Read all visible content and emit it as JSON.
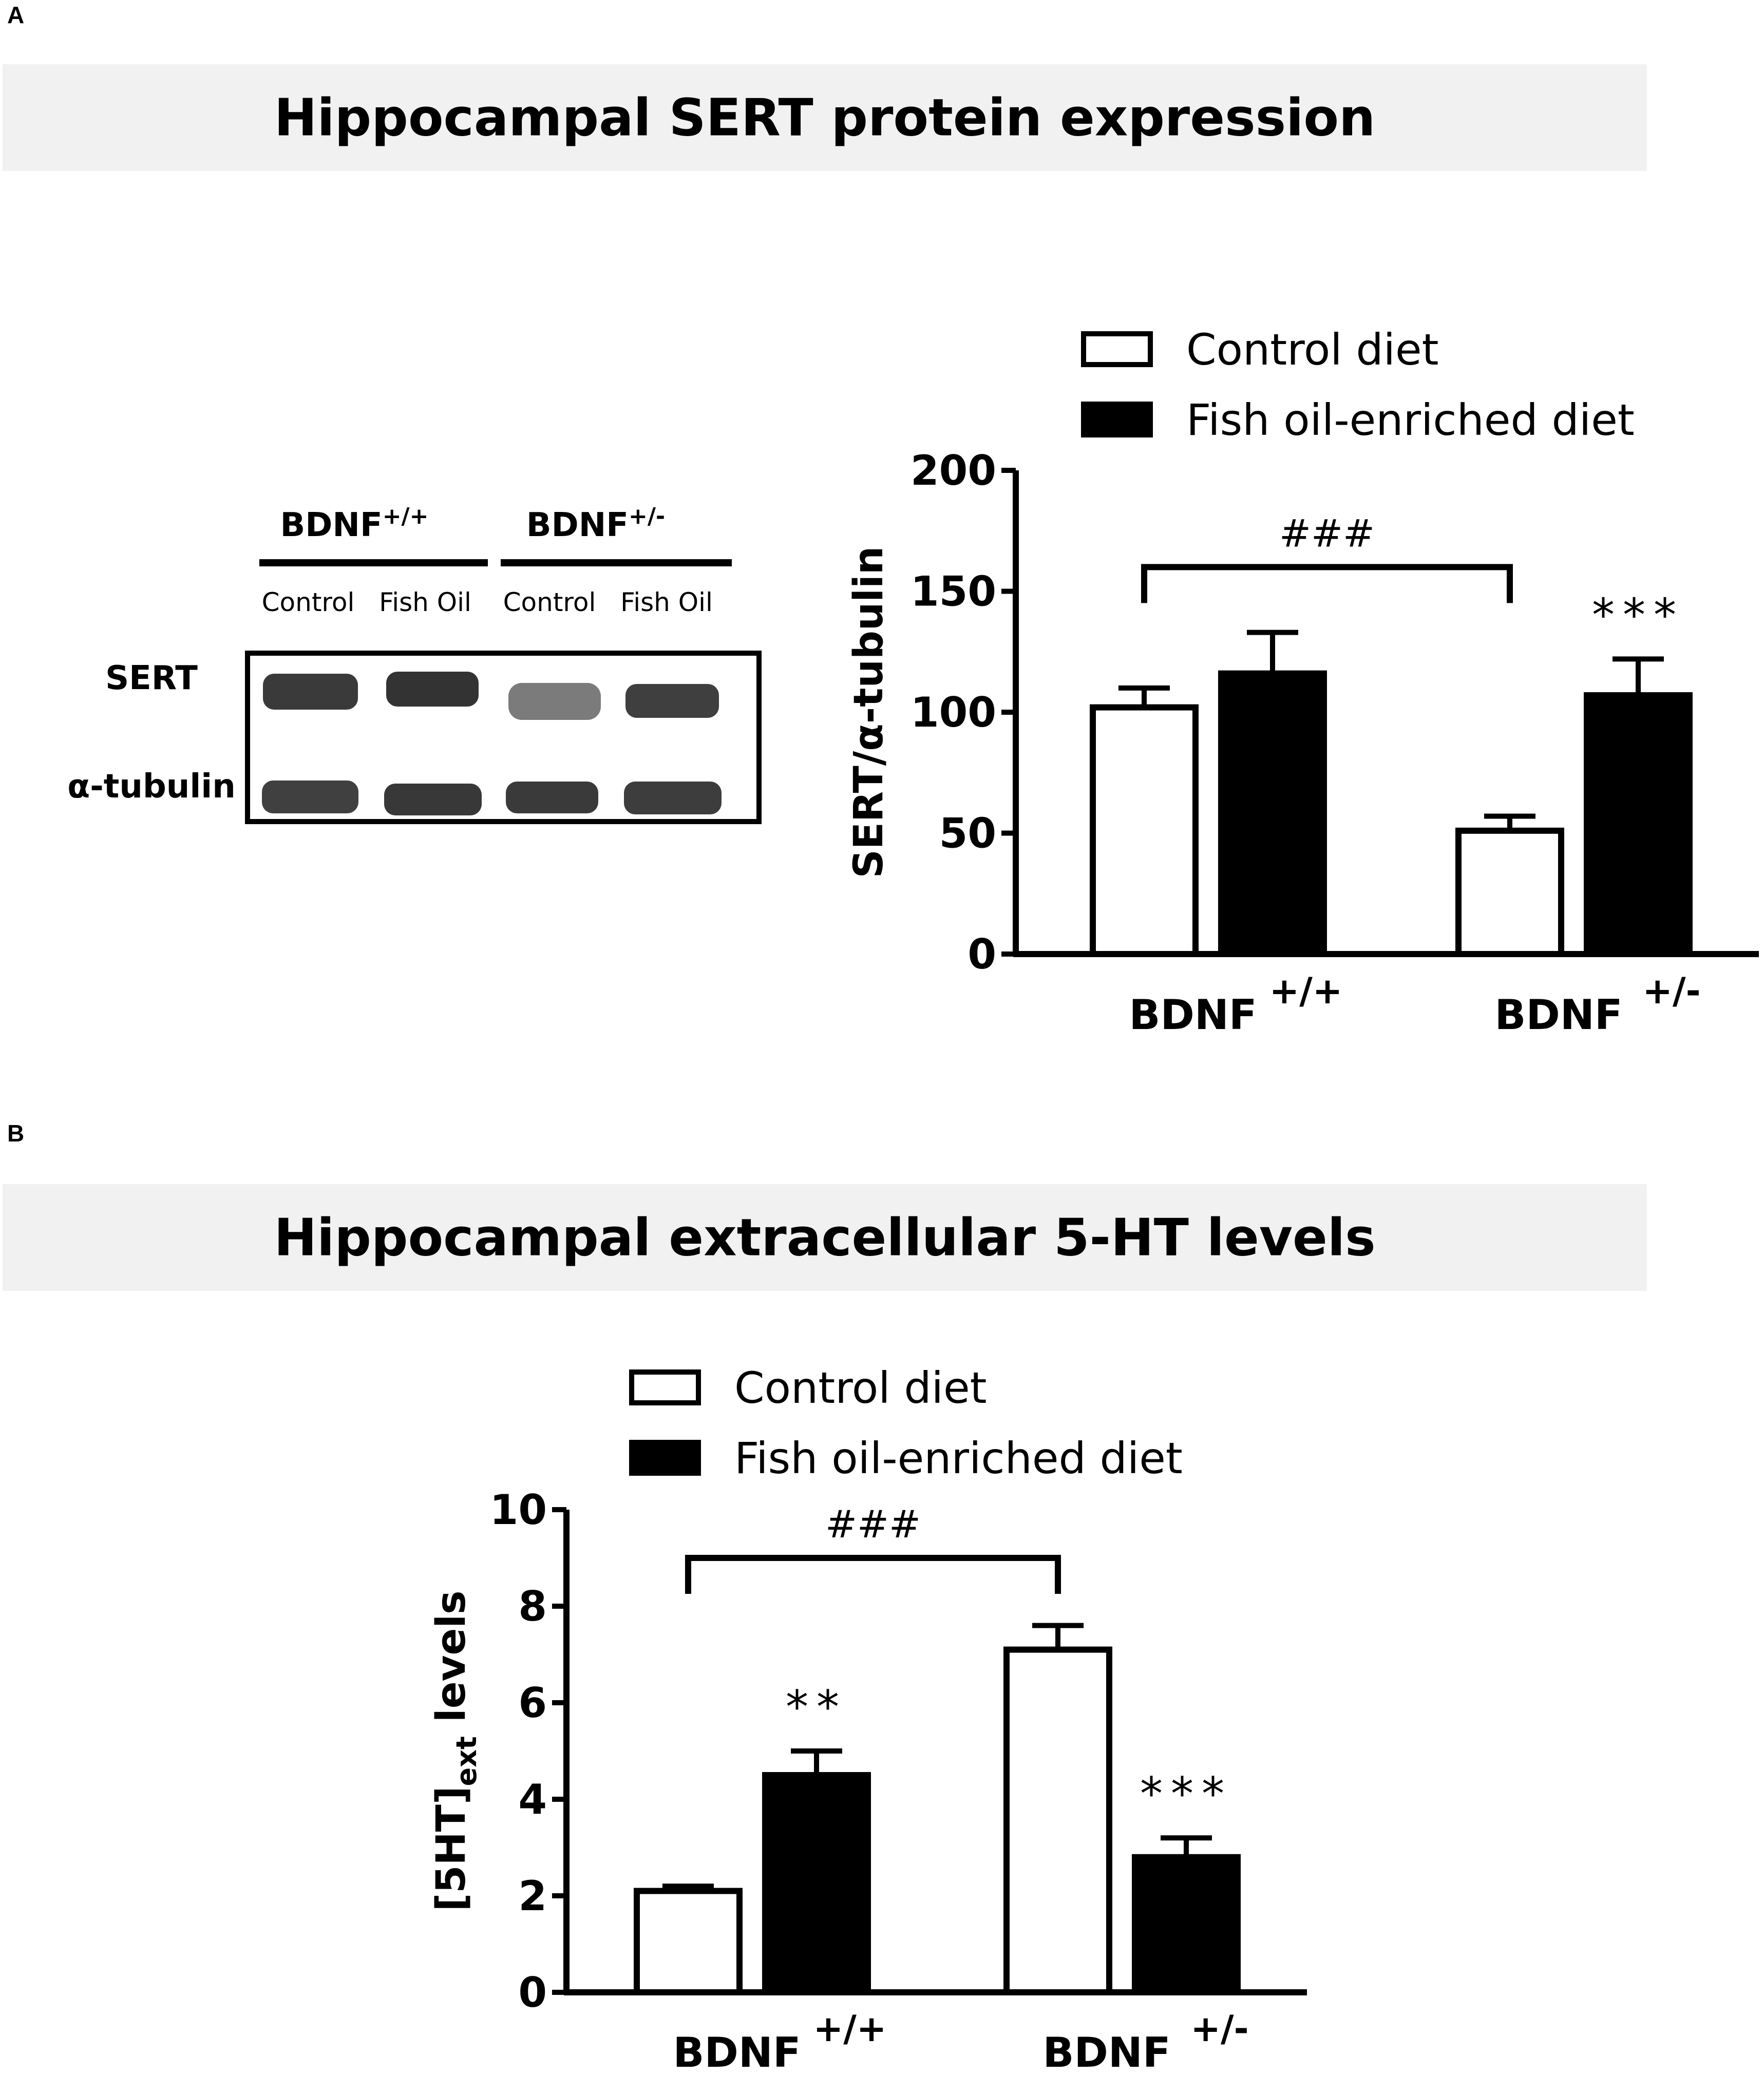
{
  "panel_a": {
    "letter": "A",
    "title": "Hippocampal SERT protein expression",
    "blot": {
      "groups": [
        {
          "label": "BDNF",
          "sup": "+/+"
        },
        {
          "label": "BDNF",
          "sup": "+/-"
        }
      ],
      "lanes": [
        "Control",
        "Fish Oil",
        "Control",
        "Fish Oil"
      ],
      "rows": [
        "SERT",
        "α-tubulin"
      ]
    }
  },
  "panel_b": {
    "letter": "B",
    "title": "Hippocampal extracellular 5-HT levels"
  },
  "colors": {
    "control": "#ffffff",
    "fish_oil": "#000000",
    "banner": "#f1f1f1"
  },
  "chart_data": [
    {
      "type": "bar",
      "ylabel": "SERT/α-tubulin",
      "ylim": [
        0,
        200
      ],
      "yticks": [
        0,
        50,
        100,
        150,
        200
      ],
      "categories": [
        {
          "label": "BDNF",
          "sup": "+/+"
        },
        {
          "label": "BDNF",
          "sup": "+/-"
        }
      ],
      "series": [
        {
          "name": "Control diet",
          "values": [
            102,
            51
          ],
          "errors": [
            8,
            6
          ],
          "color": "#ffffff"
        },
        {
          "name": "Fish oil-enriched diet",
          "values": [
            116,
            107
          ],
          "errors": [
            17,
            15
          ],
          "color": "#000000"
        }
      ],
      "annotations": [
        {
          "type": "bracket",
          "text": "###",
          "from": [
            0,
            0
          ],
          "to": [
            1,
            0
          ],
          "y": 160
        },
        {
          "type": "marker",
          "text": "***",
          "bar": [
            1,
            1
          ]
        }
      ],
      "legend": "top-right"
    },
    {
      "type": "bar",
      "ylabel": "[5HT]ext levels",
      "ylim": [
        0,
        10
      ],
      "yticks": [
        0,
        2,
        4,
        6,
        8,
        10
      ],
      "categories": [
        {
          "label": "BDNF",
          "sup": "+/+"
        },
        {
          "label": "BDNF",
          "sup": "+/-"
        }
      ],
      "series": [
        {
          "name": "Control diet",
          "values": [
            2.1,
            7.1
          ],
          "errors": [
            0.1,
            0.5
          ],
          "color": "#ffffff"
        },
        {
          "name": "Fish oil-enriched diet",
          "values": [
            4.5,
            2.8
          ],
          "errors": [
            0.5,
            0.4
          ],
          "color": "#000000"
        }
      ],
      "annotations": [
        {
          "type": "bracket",
          "text": "###",
          "from": [
            0,
            0
          ],
          "to": [
            1,
            0
          ],
          "y": 9
        },
        {
          "type": "marker",
          "text": "**",
          "bar": [
            0,
            1
          ]
        },
        {
          "type": "marker",
          "text": "***",
          "bar": [
            1,
            1
          ]
        }
      ],
      "legend": "top"
    }
  ]
}
